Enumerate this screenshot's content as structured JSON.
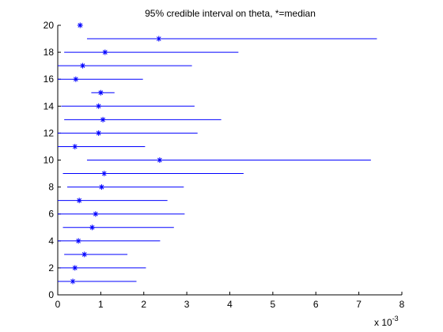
{
  "chart_data": {
    "type": "scatter",
    "title": "95% credible interval on theta, *=median",
    "xlabel": "",
    "ylabel": "",
    "x_multiplier_label": "x 10",
    "x_multiplier_exponent": "-3",
    "xlim": [
      0,
      8
    ],
    "ylim": [
      0,
      20
    ],
    "xticks": [
      "0",
      "1",
      "2",
      "3",
      "4",
      "5",
      "6",
      "7",
      "8"
    ],
    "yticks": [
      "0",
      "2",
      "4",
      "6",
      "8",
      "10",
      "12",
      "14",
      "16",
      "18",
      "20"
    ],
    "grid": false,
    "colors": {
      "series": "#0000ff",
      "axes": "#000000"
    },
    "intervals": [
      {
        "y": 1,
        "low": 0.0,
        "median": 0.35,
        "high": 1.83
      },
      {
        "y": 2,
        "low": 0.05,
        "median": 0.4,
        "high": 2.05
      },
      {
        "y": 3,
        "low": 0.15,
        "median": 0.62,
        "high": 1.62
      },
      {
        "y": 4,
        "low": 0.0,
        "median": 0.48,
        "high": 2.38
      },
      {
        "y": 5,
        "low": 0.12,
        "median": 0.8,
        "high": 2.7
      },
      {
        "y": 6,
        "low": 0.0,
        "median": 0.88,
        "high": 2.95
      },
      {
        "y": 7,
        "low": 0.0,
        "median": 0.5,
        "high": 2.55
      },
      {
        "y": 8,
        "low": 0.22,
        "median": 1.02,
        "high": 2.93
      },
      {
        "y": 9,
        "low": 0.12,
        "median": 1.08,
        "high": 4.32
      },
      {
        "y": 10,
        "low": 0.68,
        "median": 2.37,
        "high": 7.28
      },
      {
        "y": 11,
        "low": 0.0,
        "median": 0.4,
        "high": 2.03
      },
      {
        "y": 12,
        "low": 0.0,
        "median": 0.95,
        "high": 3.25
      },
      {
        "y": 13,
        "low": 0.15,
        "median": 1.05,
        "high": 3.8
      },
      {
        "y": 14,
        "low": 0.08,
        "median": 0.95,
        "high": 3.18
      },
      {
        "y": 15,
        "low": 0.78,
        "median": 1.0,
        "high": 1.32
      },
      {
        "y": 16,
        "low": 0.0,
        "median": 0.42,
        "high": 1.98
      },
      {
        "y": 17,
        "low": 0.0,
        "median": 0.58,
        "high": 3.12
      },
      {
        "y": 18,
        "low": 0.15,
        "median": 1.1,
        "high": 4.2
      },
      {
        "y": 19,
        "low": 0.68,
        "median": 2.35,
        "high": 7.42
      },
      {
        "y": 20,
        "low": 0.52,
        "median": 0.52,
        "high": 0.52
      }
    ]
  }
}
